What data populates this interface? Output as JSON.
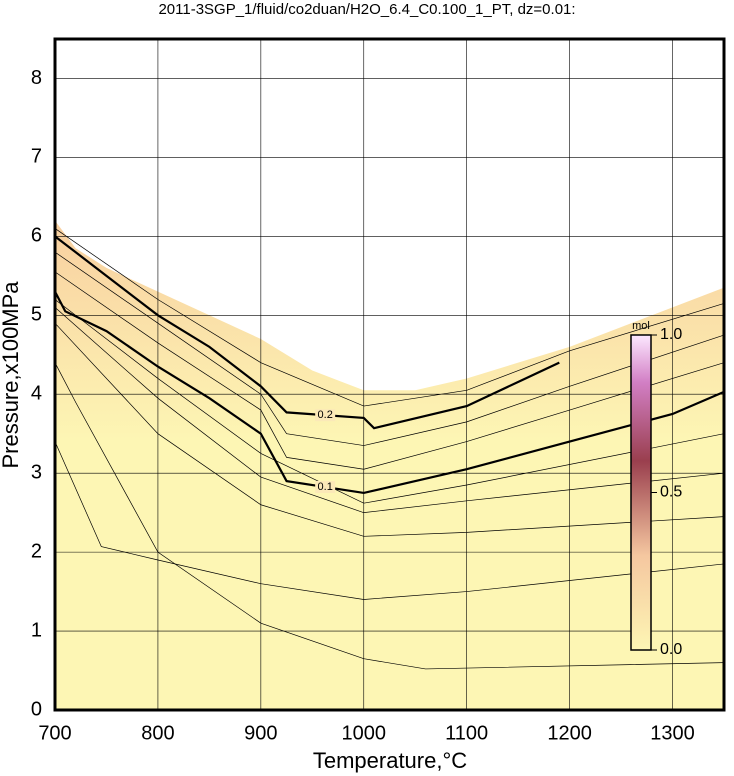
{
  "chart_data": {
    "type": "contour",
    "title": "2011-3SGP_1/fluid/co2duan/H2O_6.4_C0.100_1_PT, dz=0.01:",
    "x_label": "Temperature,°C",
    "y_label": "Pressure,x100MPa",
    "xlim": [
      700,
      1350
    ],
    "ylim": [
      0,
      8.5
    ],
    "xticks": [
      700,
      800,
      900,
      1000,
      1100,
      1200,
      1300
    ],
    "yticks": [
      0,
      1,
      2,
      3,
      4,
      5,
      6,
      7,
      8
    ],
    "grid": true,
    "region": {
      "color_bottom": "#fdf6b4",
      "color_top": "#f8cfa0",
      "x": [
        700,
        720,
        750,
        800,
        850,
        900,
        950,
        1000,
        1050,
        1100,
        1150,
        1200,
        1250,
        1300,
        1350
      ],
      "values": [
        6.2,
        5.85,
        5.6,
        5.3,
        5.0,
        4.7,
        4.3,
        4.05,
        4.05,
        4.2,
        4.4,
        4.6,
        4.85,
        5.1,
        5.35
      ]
    },
    "series": [
      {
        "color": "#000",
        "width": 0.7,
        "x": [
          700,
          720,
          800,
          900,
          1000,
          1060,
          1350
        ],
        "values": [
          4.4,
          3.9,
          2.0,
          1.1,
          0.65,
          0.52,
          0.6
        ]
      },
      {
        "color": "#000",
        "width": 0.7,
        "x": [
          700,
          745,
          800,
          900,
          1000,
          1100,
          1350
        ],
        "values": [
          3.4,
          2.07,
          1.9,
          1.6,
          1.4,
          1.5,
          1.85
        ]
      },
      {
        "color": "#000",
        "width": 0.7,
        "x": [
          700,
          800,
          900,
          1000,
          1100,
          1350
        ],
        "values": [
          4.9,
          3.5,
          2.6,
          2.2,
          2.25,
          2.45
        ]
      },
      {
        "color": "#000",
        "width": 0.7,
        "x": [
          700,
          800,
          900,
          1000,
          1100,
          1350
        ],
        "values": [
          5.1,
          3.95,
          2.95,
          2.5,
          2.65,
          3.0
        ]
      },
      {
        "color": "#000",
        "width": 0.7,
        "x": [
          700,
          800,
          900,
          1000,
          1100,
          1350
        ],
        "values": [
          5.2,
          4.2,
          3.25,
          2.62,
          2.85,
          3.5
        ]
      },
      {
        "name": "0.1",
        "color": "#000",
        "width": 2.2,
        "x": [
          700,
          710,
          750,
          800,
          850,
          900,
          925,
          1000,
          1100,
          1200,
          1300,
          1350
        ],
        "values": [
          5.3,
          5.05,
          4.8,
          4.35,
          3.95,
          3.5,
          2.9,
          2.75,
          3.05,
          3.4,
          3.75,
          4.03
        ]
      },
      {
        "color": "#000",
        "width": 0.7,
        "x": [
          700,
          800,
          900,
          925,
          1000,
          1100,
          1200,
          1350
        ],
        "values": [
          5.55,
          4.65,
          3.8,
          3.2,
          3.05,
          3.4,
          3.8,
          4.4
        ]
      },
      {
        "color": "#000",
        "width": 0.7,
        "x": [
          700,
          800,
          900,
          925,
          1000,
          1100,
          1200,
          1350
        ],
        "values": [
          5.8,
          4.9,
          4.0,
          3.5,
          3.35,
          3.65,
          4.1,
          4.75
        ]
      },
      {
        "name": "0.2",
        "color": "#000",
        "width": 2.2,
        "x": [
          700,
          750,
          800,
          850,
          900,
          925,
          1000,
          1010,
          1100,
          1190
        ],
        "values": [
          6.0,
          5.5,
          5.0,
          4.6,
          4.1,
          3.77,
          3.7,
          3.57,
          3.85,
          4.4
        ]
      },
      {
        "color": "#000",
        "width": 0.7,
        "x": [
          700,
          800,
          900,
          1000,
          1100,
          1200,
          1350
        ],
        "values": [
          6.1,
          5.2,
          4.4,
          3.85,
          4.05,
          4.55,
          5.15
        ]
      }
    ],
    "colorbar": {
      "label": "mol",
      "lim": [
        0,
        1
      ],
      "ticks": [
        {
          "value": 0,
          "label": "0.0"
        },
        {
          "value": 0.5,
          "label": "0.5"
        },
        {
          "value": 1,
          "label": "1.0"
        }
      ]
    }
  }
}
